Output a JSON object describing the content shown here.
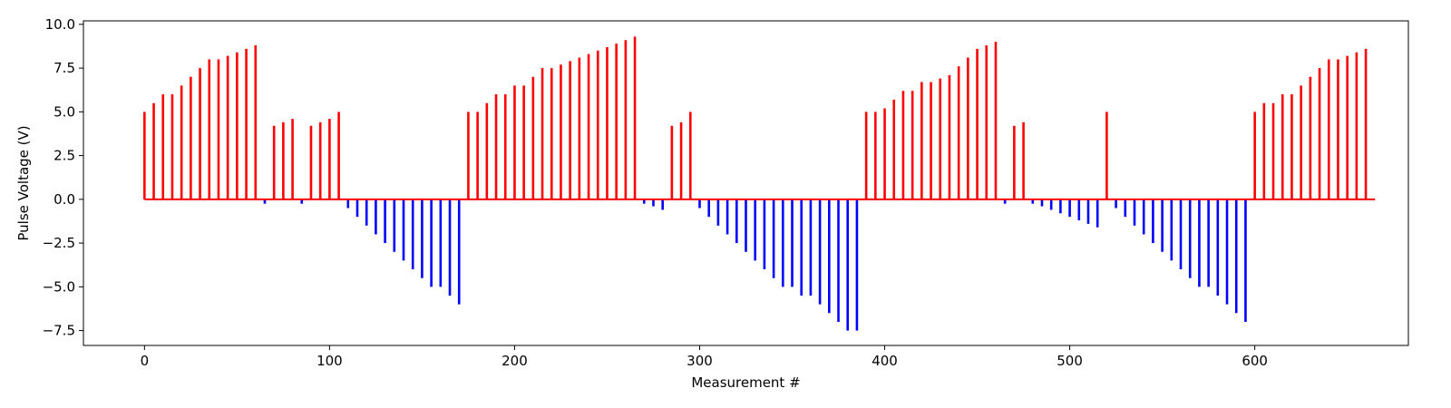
{
  "chart_data": {
    "type": "stem",
    "title": "",
    "xlabel": "Measurement #",
    "ylabel": "Pulse Voltage (V)",
    "xlim": [
      -33,
      683
    ],
    "ylim": [
      -8.35,
      10.2
    ],
    "x_ticks": [
      0,
      100,
      200,
      300,
      400,
      500,
      600
    ],
    "x_tick_labels": [
      "0",
      "100",
      "200",
      "300",
      "400",
      "500",
      "600"
    ],
    "y_ticks": [
      -7.5,
      -5.0,
      -2.5,
      0.0,
      2.5,
      5.0,
      7.5,
      10.0
    ],
    "y_tick_labels": [
      "−7.5",
      "−5.0",
      "−2.5",
      "0.0",
      "2.5",
      "5.0",
      "7.5",
      "10.0"
    ],
    "grid": false,
    "legend": "none",
    "baseline_color": "#ff0000",
    "baseline_range": [
      0,
      665
    ],
    "colors": {
      "positive": "#ff0000",
      "negative": "#0000ff"
    },
    "series": [
      {
        "color": "#ff0000",
        "points": [
          [
            0,
            5.0
          ],
          [
            5,
            5.5
          ],
          [
            10,
            6.0
          ],
          [
            15,
            6.0
          ],
          [
            20,
            6.5
          ],
          [
            25,
            7.0
          ],
          [
            30,
            7.5
          ],
          [
            35,
            8.0
          ],
          [
            40,
            8.0
          ],
          [
            45,
            8.2
          ],
          [
            50,
            8.4
          ],
          [
            55,
            8.6
          ],
          [
            60,
            8.8
          ],
          [
            70,
            4.2
          ],
          [
            75,
            4.4
          ],
          [
            80,
            4.6
          ],
          [
            90,
            4.2
          ],
          [
            95,
            4.4
          ],
          [
            100,
            4.6
          ],
          [
            105,
            5.0
          ],
          [
            175,
            5.0
          ],
          [
            180,
            5.0
          ],
          [
            185,
            5.5
          ],
          [
            190,
            6.0
          ],
          [
            195,
            6.0
          ],
          [
            200,
            6.5
          ],
          [
            205,
            6.5
          ],
          [
            210,
            7.0
          ],
          [
            215,
            7.5
          ],
          [
            220,
            7.5
          ],
          [
            225,
            7.7
          ],
          [
            230,
            7.9
          ],
          [
            235,
            8.1
          ],
          [
            240,
            8.3
          ],
          [
            245,
            8.5
          ],
          [
            250,
            8.7
          ],
          [
            255,
            8.9
          ],
          [
            260,
            9.1
          ],
          [
            265,
            9.3
          ],
          [
            285,
            4.2
          ],
          [
            290,
            4.4
          ],
          [
            295,
            5.0
          ],
          [
            390,
            5.0
          ],
          [
            395,
            5.0
          ],
          [
            400,
            5.2
          ],
          [
            405,
            5.7
          ],
          [
            410,
            6.2
          ],
          [
            415,
            6.2
          ],
          [
            420,
            6.7
          ],
          [
            425,
            6.7
          ],
          [
            430,
            6.9
          ],
          [
            435,
            7.1
          ],
          [
            440,
            7.6
          ],
          [
            445,
            8.1
          ],
          [
            450,
            8.6
          ],
          [
            455,
            8.8
          ],
          [
            460,
            9.0
          ],
          [
            470,
            4.2
          ],
          [
            475,
            4.4
          ],
          [
            520,
            5.0
          ],
          [
            600,
            5.0
          ],
          [
            605,
            5.5
          ],
          [
            610,
            5.5
          ],
          [
            615,
            6.0
          ],
          [
            620,
            6.0
          ],
          [
            625,
            6.5
          ],
          [
            630,
            7.0
          ],
          [
            635,
            7.5
          ],
          [
            640,
            8.0
          ],
          [
            645,
            8.0
          ],
          [
            650,
            8.2
          ],
          [
            655,
            8.4
          ],
          [
            660,
            8.6
          ]
        ]
      },
      {
        "color": "#0000ff",
        "points": [
          [
            65,
            -0.25
          ],
          [
            85,
            -0.25
          ],
          [
            110,
            -0.5
          ],
          [
            115,
            -1.0
          ],
          [
            120,
            -1.5
          ],
          [
            125,
            -2.0
          ],
          [
            130,
            -2.5
          ],
          [
            135,
            -3.0
          ],
          [
            140,
            -3.5
          ],
          [
            145,
            -4.0
          ],
          [
            150,
            -4.5
          ],
          [
            155,
            -5.0
          ],
          [
            160,
            -5.0
          ],
          [
            165,
            -5.5
          ],
          [
            170,
            -6.0
          ],
          [
            270,
            -0.25
          ],
          [
            275,
            -0.4
          ],
          [
            280,
            -0.6
          ],
          [
            300,
            -0.5
          ],
          [
            305,
            -1.0
          ],
          [
            310,
            -1.5
          ],
          [
            315,
            -2.0
          ],
          [
            320,
            -2.5
          ],
          [
            325,
            -3.0
          ],
          [
            330,
            -3.5
          ],
          [
            335,
            -4.0
          ],
          [
            340,
            -4.5
          ],
          [
            345,
            -5.0
          ],
          [
            350,
            -5.0
          ],
          [
            355,
            -5.5
          ],
          [
            360,
            -5.5
          ],
          [
            365,
            -6.0
          ],
          [
            370,
            -6.5
          ],
          [
            375,
            -7.0
          ],
          [
            380,
            -7.5
          ],
          [
            385,
            -7.5
          ],
          [
            465,
            -0.25
          ],
          [
            480,
            -0.25
          ],
          [
            485,
            -0.4
          ],
          [
            490,
            -0.6
          ],
          [
            495,
            -0.8
          ],
          [
            500,
            -1.0
          ],
          [
            505,
            -1.2
          ],
          [
            510,
            -1.4
          ],
          [
            515,
            -1.6
          ],
          [
            525,
            -0.5
          ],
          [
            530,
            -1.0
          ],
          [
            535,
            -1.5
          ],
          [
            540,
            -2.0
          ],
          [
            545,
            -2.5
          ],
          [
            550,
            -3.0
          ],
          [
            555,
            -3.5
          ],
          [
            560,
            -4.0
          ],
          [
            565,
            -4.5
          ],
          [
            570,
            -5.0
          ],
          [
            575,
            -5.0
          ],
          [
            580,
            -5.5
          ],
          [
            585,
            -6.0
          ],
          [
            590,
            -6.5
          ],
          [
            595,
            -7.0
          ]
        ]
      }
    ]
  }
}
